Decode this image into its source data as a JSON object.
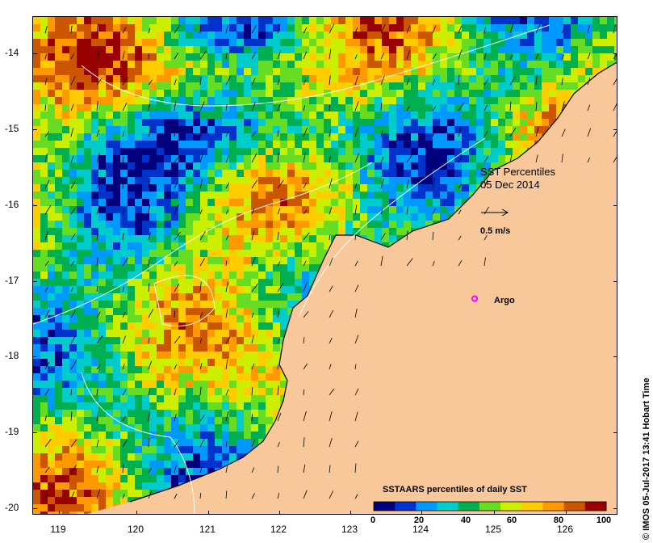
{
  "map": {
    "lon_range": [
      118.65,
      126.8
    ],
    "lat_range": [
      -20.1,
      -13.55
    ],
    "land_color": "#f9c89a",
    "coast_color": "#000000",
    "contour_color": "#ffffff",
    "lon_ticks": [
      "119",
      "120",
      "121",
      "122",
      "123",
      "124",
      "125",
      "126"
    ],
    "lat_ticks": [
      "-14",
      "-15",
      "-16",
      "-17",
      "-18",
      "-19",
      "-20"
    ]
  },
  "annotation": {
    "title": "SST Percentiles",
    "date": "05 Dec 2014",
    "scale_label": "0.5 m/s",
    "argo_label": "Argo",
    "argo_color": "#ff00ff",
    "argo_lon": 124.8,
    "argo_lat": -17.25
  },
  "legend": {
    "title": "SSTAARS percentiles of daily SST",
    "tick_labels": [
      "0",
      "20",
      "40",
      "60",
      "80",
      "100"
    ],
    "colors": [
      "#00007f",
      "#0033cc",
      "#0099ff",
      "#00cccc",
      "#00b050",
      "#66dd22",
      "#ccee00",
      "#ffcc00",
      "#ff9900",
      "#cc5500",
      "#990000"
    ]
  },
  "credit": "© IMOS 05-Jul-2017 13:41 Hobart Time"
}
